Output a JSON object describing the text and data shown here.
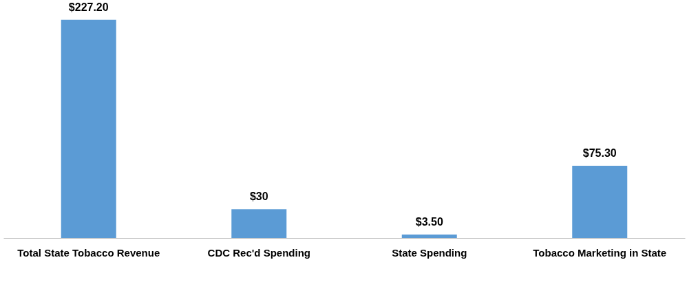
{
  "chart_data": {
    "type": "bar",
    "categories": [
      "Total State Tobacco Revenue",
      "CDC Rec'd Spending",
      "State Spending",
      "Tobacco Marketing in State"
    ],
    "values": [
      227.2,
      30,
      3.5,
      75.3
    ],
    "value_labels": [
      "$227.20",
      "$30",
      "$3.50",
      "$75.30"
    ],
    "color": "#5b9bd5",
    "tick_labels": "x",
    "grid": false
  }
}
